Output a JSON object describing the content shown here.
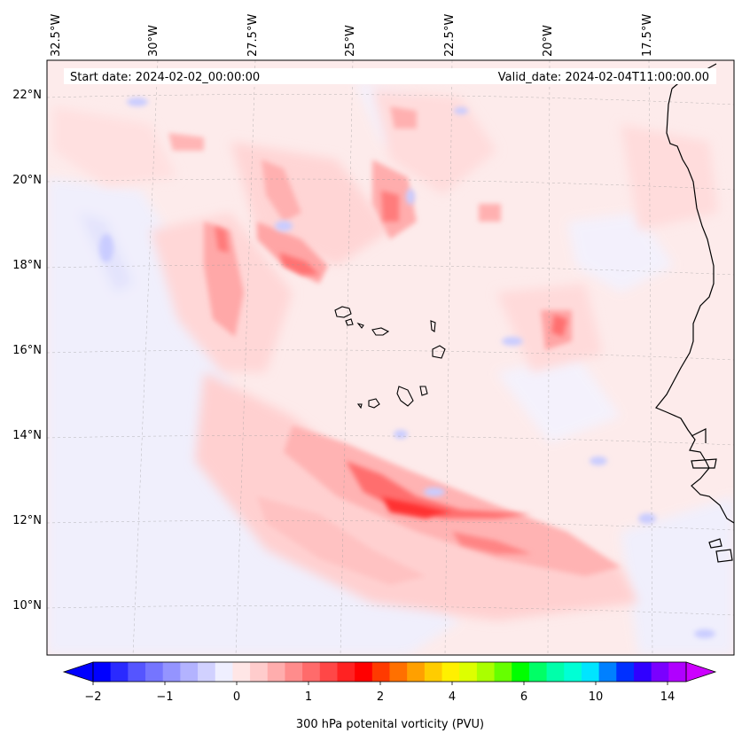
{
  "header": {
    "start_label": "Start date: 2024-02-02_00:00:00",
    "valid_label": "Valid_date: 2024-02-04T11:00:00.00"
  },
  "lon_labels": [
    "32.5°W",
    "30°W",
    "27.5°W",
    "25°W",
    "22.5°W",
    "20°W",
    "17.5°W"
  ],
  "lat_labels": [
    "22°N",
    "20°N",
    "18°N",
    "16°N",
    "14°N",
    "12°N",
    "10°N"
  ],
  "colorbar": {
    "title": "300 hPa potenital vorticity (PVU)",
    "tick_labels": [
      "−2",
      "−1",
      "0",
      "1",
      "2",
      "4",
      "6",
      "10",
      "14"
    ],
    "colors": [
      "#0000ff",
      "#2a2aff",
      "#5555ff",
      "#7575ff",
      "#9494ff",
      "#b3b3ff",
      "#d1d1ff",
      "#efefff",
      "#ffe6e6",
      "#ffcccc",
      "#ffadad",
      "#ff8c8c",
      "#ff6b6b",
      "#ff4747",
      "#ff2222",
      "#ff0000",
      "#ff3a00",
      "#ff7000",
      "#ffa000",
      "#ffcc00",
      "#fff000",
      "#ddff00",
      "#aaff00",
      "#66ff00",
      "#00ff00",
      "#00ff66",
      "#00ffaa",
      "#00ffd5",
      "#00e5ff",
      "#0080ff",
      "#0030ff",
      "#3000ff",
      "#7a00ff",
      "#b000ff"
    ],
    "under_color": "#0000ff",
    "over_color": "#cc00ff"
  },
  "map_colors": {
    "background": "#fdebeb",
    "coast": "#000000"
  }
}
